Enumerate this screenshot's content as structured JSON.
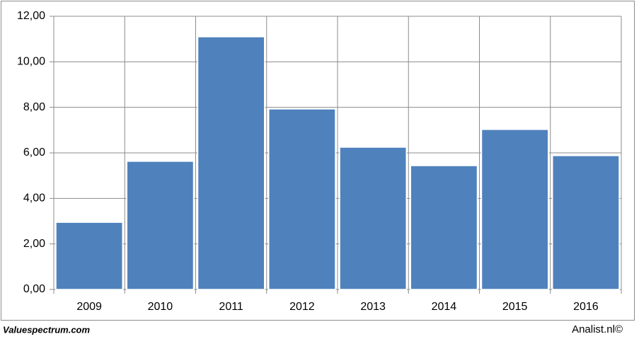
{
  "chart_data": {
    "type": "bar",
    "categories": [
      "2009",
      "2010",
      "2011",
      "2012",
      "2013",
      "2014",
      "2015",
      "2016"
    ],
    "values": [
      2.95,
      5.63,
      11.1,
      7.93,
      6.25,
      5.44,
      7.03,
      5.88
    ],
    "color": "#4f81bd",
    "ylim": [
      0,
      12
    ],
    "yticks": [
      {
        "value": 0,
        "label": "0,00"
      },
      {
        "value": 2,
        "label": "2,00"
      },
      {
        "value": 4,
        "label": "4,00"
      },
      {
        "value": 6,
        "label": "6,00"
      },
      {
        "value": 8,
        "label": "8,00"
      },
      {
        "value": 10,
        "label": "10,00"
      },
      {
        "value": 12,
        "label": "12,00"
      }
    ],
    "grid": true,
    "source_left": "Valuespectrum.com",
    "source_right": "Analist.nl©"
  }
}
